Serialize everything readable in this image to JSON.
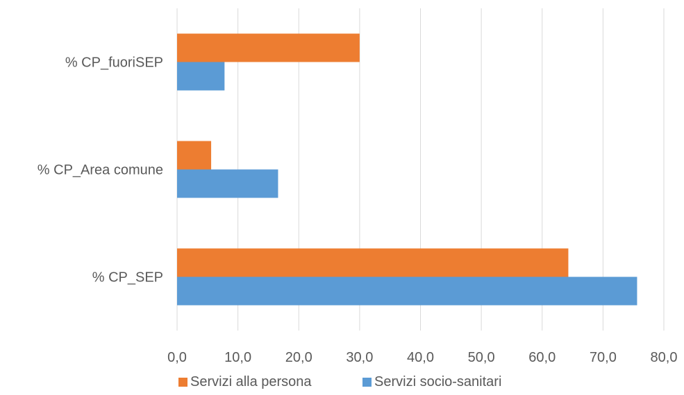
{
  "chart_data": {
    "type": "bar",
    "orientation": "horizontal",
    "categories": [
      "% CP_fuoriSEP",
      "% CP_Area comune",
      "% CP_SEP"
    ],
    "series": [
      {
        "name": "Servizi alla persona",
        "color": "#ED7D31",
        "values": [
          30.0,
          5.6,
          64.3
        ]
      },
      {
        "name": "Servizi socio-sanitari",
        "color": "#5B9BD5",
        "values": [
          7.8,
          16.6,
          75.6
        ]
      }
    ],
    "xlim": [
      0,
      80
    ],
    "xticks": [
      "0,0",
      "10,0",
      "20,0",
      "30,0",
      "40,0",
      "50,0",
      "60,0",
      "70,0",
      "80,0"
    ],
    "grid": true,
    "legend_position": "bottom",
    "title": "",
    "xlabel": "",
    "ylabel": ""
  }
}
